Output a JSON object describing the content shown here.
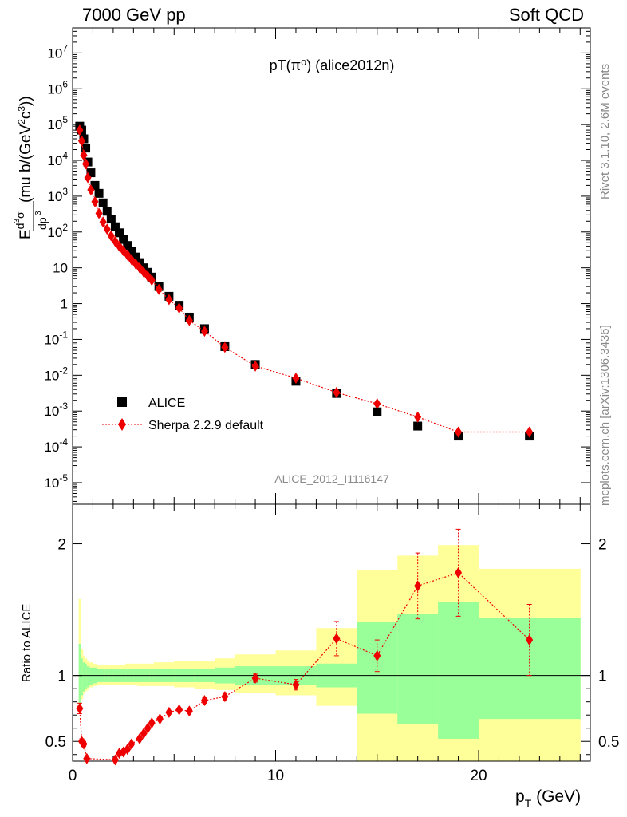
{
  "header": {
    "left": "7000 GeV pp",
    "right": "Soft QCD"
  },
  "side_labels": {
    "rivet": "Rivet 3.1.10,  2.6M events",
    "mcplots": "mcplots.cern.ch [arXiv:1306.3436]"
  },
  "chart_data": [
    {
      "type": "scatter",
      "title": "pT(π⁰) (alice2012n)",
      "watermark": "ALICE_2012_I1116147",
      "xlabel": "p_T (GeV)",
      "ylabel": "E d³σ/dp³ (mu b/(GeV²c³))",
      "xlim": [
        0,
        25.5
      ],
      "ylim": [
        2.5e-06,
        50000000
      ],
      "yscale": "log",
      "ytick_labels": [
        "10^-5",
        "10^-4",
        "10^-3",
        "10^-2",
        "10^-1",
        "1",
        "10",
        "10^2",
        "10^3",
        "10^4",
        "10^5",
        "10^6",
        "10^7"
      ],
      "legend_position": "middle-left",
      "series": [
        {
          "name": "ALICE",
          "color": "#000000",
          "marker": "square",
          "x": [
            0.35,
            0.45,
            0.55,
            0.65,
            0.75,
            0.9,
            1.1,
            1.3,
            1.5,
            1.7,
            1.9,
            2.1,
            2.3,
            2.5,
            2.7,
            2.9,
            3.1,
            3.3,
            3.5,
            3.7,
            3.9,
            4.25,
            4.75,
            5.25,
            5.75,
            6.5,
            7.5,
            9.0,
            11.0,
            13.0,
            15.0,
            17.0,
            19.0,
            22.5
          ],
          "y": [
            90000,
            70000,
            40000,
            22000,
            9000,
            4500,
            2000,
            1200,
            650,
            380,
            230,
            140,
            95,
            62,
            42,
            29,
            20,
            14,
            10,
            7.5,
            5.5,
            3.0,
            1.6,
            0.9,
            0.42,
            0.2,
            0.063,
            0.02,
            0.0068,
            0.0031,
            0.00095,
            0.00038,
            0.0002,
            0.0002
          ]
        },
        {
          "name": "Sherpa 2.2.9 default",
          "color": "#ee0000",
          "marker": "diamond",
          "line": "dotted",
          "x": [
            0.35,
            0.45,
            0.55,
            0.65,
            0.75,
            0.9,
            1.1,
            1.3,
            1.5,
            1.7,
            1.9,
            2.1,
            2.3,
            2.5,
            2.7,
            2.9,
            3.1,
            3.3,
            3.5,
            3.7,
            3.9,
            4.25,
            4.75,
            5.25,
            5.75,
            6.5,
            7.5,
            9.0,
            11.0,
            13.0,
            15.0,
            17.0,
            19.0,
            22.5
          ],
          "y": [
            70000,
            35000,
            14000,
            8000,
            3300,
            1500,
            700,
            330,
            190,
            120,
            78,
            55,
            40,
            30,
            23,
            17,
            13,
            10,
            7.6,
            5.9,
            4.5,
            2.5,
            1.3,
            0.75,
            0.34,
            0.17,
            0.06,
            0.018,
            0.0083,
            0.0033,
            0.0016,
            0.00068,
            0.00026,
            0.00026
          ]
        }
      ]
    },
    {
      "type": "scatter",
      "ylabel": "Ratio to ALICE",
      "xlabel": "p_T (GeV)",
      "xlim": [
        0,
        25.5
      ],
      "ylim": [
        0.35,
        2.3
      ],
      "ytick_labels": [
        "0.5",
        "1",
        "2"
      ],
      "xtick_labels": [
        "0",
        "10",
        "20"
      ],
      "bands": {
        "x_edges": [
          0.3,
          0.4,
          0.5,
          0.6,
          0.7,
          0.8,
          1.0,
          1.2,
          1.4,
          1.6,
          1.8,
          2.0,
          2.2,
          2.4,
          2.6,
          2.8,
          3.0,
          3.2,
          3.4,
          3.6,
          3.8,
          4.0,
          4.5,
          5.0,
          5.5,
          6.0,
          7.0,
          8.0,
          10.0,
          12.0,
          14.0,
          16.0,
          18.0,
          20.0,
          25.0
        ],
        "inner_colour": "#99ff99",
        "outer_colour": "#ffff99",
        "inner": [
          [
            0.78,
            1.24
          ],
          [
            0.85,
            1.13
          ],
          [
            0.88,
            1.1
          ],
          [
            0.9,
            1.09
          ],
          [
            0.91,
            1.07
          ],
          [
            0.93,
            1.06
          ],
          [
            0.94,
            1.06
          ],
          [
            0.95,
            1.05
          ],
          [
            0.95,
            1.05
          ],
          [
            0.95,
            1.05
          ],
          [
            0.95,
            1.05
          ],
          [
            0.95,
            1.05
          ],
          [
            0.95,
            1.05
          ],
          [
            0.95,
            1.05
          ],
          [
            0.95,
            1.05
          ],
          [
            0.95,
            1.05
          ],
          [
            0.95,
            1.05
          ],
          [
            0.95,
            1.05
          ],
          [
            0.95,
            1.05
          ],
          [
            0.95,
            1.05
          ],
          [
            0.95,
            1.05
          ],
          [
            0.95,
            1.05
          ],
          [
            0.95,
            1.05
          ],
          [
            0.95,
            1.05
          ],
          [
            0.95,
            1.05
          ],
          [
            0.95,
            1.05
          ],
          [
            0.94,
            1.06
          ],
          [
            0.93,
            1.07
          ],
          [
            0.93,
            1.07
          ],
          [
            0.91,
            1.09
          ],
          [
            0.71,
            1.41
          ],
          [
            0.63,
            1.47
          ],
          [
            0.52,
            1.56
          ],
          [
            0.67,
            1.44
          ]
        ],
        "outer": [
          [
            0.72,
            1.58
          ],
          [
            0.82,
            1.2
          ],
          [
            0.86,
            1.15
          ],
          [
            0.88,
            1.13
          ],
          [
            0.89,
            1.11
          ],
          [
            0.91,
            1.1
          ],
          [
            0.92,
            1.09
          ],
          [
            0.93,
            1.08
          ],
          [
            0.93,
            1.08
          ],
          [
            0.93,
            1.08
          ],
          [
            0.93,
            1.08
          ],
          [
            0.93,
            1.08
          ],
          [
            0.93,
            1.08
          ],
          [
            0.93,
            1.08
          ],
          [
            0.93,
            1.09
          ],
          [
            0.93,
            1.09
          ],
          [
            0.93,
            1.09
          ],
          [
            0.92,
            1.09
          ],
          [
            0.92,
            1.09
          ],
          [
            0.92,
            1.09
          ],
          [
            0.92,
            1.09
          ],
          [
            0.92,
            1.1
          ],
          [
            0.92,
            1.1
          ],
          [
            0.91,
            1.11
          ],
          [
            0.91,
            1.11
          ],
          [
            0.9,
            1.11
          ],
          [
            0.89,
            1.13
          ],
          [
            0.87,
            1.16
          ],
          [
            0.85,
            1.19
          ],
          [
            0.77,
            1.36
          ],
          [
            0.3,
            1.8
          ],
          [
            0.3,
            1.91
          ],
          [
            0.3,
            1.99
          ],
          [
            0.3,
            1.81
          ]
        ]
      },
      "ratio_series": {
        "name": "Sherpa 2.2.9 default",
        "color": "#ee0000",
        "x": [
          0.35,
          0.45,
          0.55,
          0.7,
          2.1,
          2.3,
          2.5,
          2.7,
          2.9,
          3.3,
          3.5,
          3.7,
          3.9,
          4.3,
          4.75,
          5.25,
          5.75,
          6.5,
          7.5,
          9.0,
          11.0,
          13.0,
          15.0,
          17.0,
          19.0,
          22.5
        ],
        "y": [
          0.75,
          0.5,
          0.48,
          0.37,
          0.36,
          0.41,
          0.42,
          0.44,
          0.48,
          0.52,
          0.56,
          0.6,
          0.64,
          0.67,
          0.72,
          0.74,
          0.73,
          0.81,
          0.84,
          0.98,
          0.93,
          1.28,
          1.15,
          1.68,
          1.78,
          1.27
        ],
        "yerr": [
          0.04,
          0.02,
          0.02,
          0.02,
          0.01,
          0.01,
          0.01,
          0.01,
          0.01,
          0.01,
          0.01,
          0.01,
          0.01,
          0.01,
          0.01,
          0.01,
          0.01,
          0.02,
          0.03,
          0.03,
          0.04,
          0.13,
          0.12,
          0.25,
          0.33,
          0.27
        ]
      }
    }
  ]
}
